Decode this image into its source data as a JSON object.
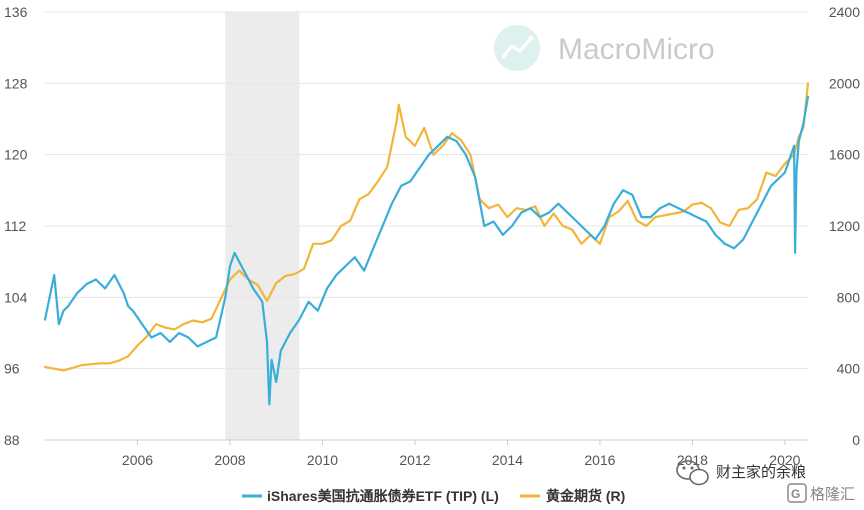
{
  "watermark": {
    "text": "MacroMicro",
    "logo": "macromicro-logo-icon"
  },
  "credits": {
    "wechat_account": "财主家的余粮",
    "publisher": "格隆汇",
    "wechat_icon": "wechat-icon",
    "publisher_icon": "gelonghui-logo-icon"
  },
  "colors": {
    "tip": "#3aaed8",
    "gold": "#f2b53a",
    "grid": "#e6e6e6",
    "shade": "#ececec"
  },
  "chart_data": {
    "type": "line",
    "x_range": [
      2004.0,
      2020.5
    ],
    "y_left": {
      "min": 88,
      "max": 136,
      "ticks": [
        "88",
        "96",
        "104",
        "112",
        "120",
        "128",
        "136"
      ]
    },
    "y_right": {
      "min": 0,
      "max": 2400,
      "ticks": [
        "0",
        "400",
        "800",
        "1200",
        "1600",
        "2000",
        "2400"
      ]
    },
    "x_ticks": [
      "2006",
      "2008",
      "2010",
      "2012",
      "2014",
      "2016",
      "2018",
      "2020"
    ],
    "grid": true,
    "legend_position": "bottom",
    "shaded_regions": [
      {
        "from": 2007.9,
        "to": 2009.5
      }
    ],
    "series": [
      {
        "name": "iShares美国抗通胀债券ETF (TIP) (L)",
        "axis": "left",
        "color": "#3aaed8",
        "x": [
          2004.0,
          2004.1,
          2004.2,
          2004.3,
          2004.4,
          2004.5,
          2004.7,
          2004.9,
          2005.1,
          2005.3,
          2005.5,
          2005.7,
          2005.8,
          2005.9,
          2006.1,
          2006.3,
          2006.5,
          2006.7,
          2006.9,
          2007.1,
          2007.3,
          2007.5,
          2007.7,
          2007.9,
          2008.0,
          2008.1,
          2008.2,
          2008.35,
          2008.5,
          2008.7,
          2008.8,
          2008.85,
          2008.9,
          2009.0,
          2009.1,
          2009.3,
          2009.5,
          2009.7,
          2009.9,
          2010.1,
          2010.3,
          2010.5,
          2010.7,
          2010.9,
          2011.1,
          2011.3,
          2011.5,
          2011.7,
          2011.9,
          2012.1,
          2012.3,
          2012.5,
          2012.7,
          2012.9,
          2013.1,
          2013.3,
          2013.5,
          2013.7,
          2013.9,
          2014.1,
          2014.3,
          2014.5,
          2014.7,
          2014.9,
          2015.1,
          2015.3,
          2015.5,
          2015.7,
          2015.9,
          2016.1,
          2016.3,
          2016.5,
          2016.7,
          2016.9,
          2017.1,
          2017.3,
          2017.5,
          2017.7,
          2017.9,
          2018.1,
          2018.3,
          2018.5,
          2018.7,
          2018.9,
          2019.1,
          2019.3,
          2019.5,
          2019.7,
          2019.9,
          2020.0,
          2020.1,
          2020.2,
          2020.22,
          2020.25,
          2020.3,
          2020.4,
          2020.5
        ],
        "values": [
          101.5,
          104.0,
          106.5,
          101.0,
          102.5,
          103.0,
          104.5,
          105.5,
          106.0,
          105.0,
          106.5,
          104.5,
          103.0,
          102.5,
          101.0,
          99.5,
          100.0,
          99.0,
          100.0,
          99.5,
          98.5,
          99.0,
          99.5,
          104.0,
          107.5,
          109.0,
          108.0,
          106.5,
          105.0,
          103.5,
          99.0,
          92.0,
          97.0,
          94.5,
          98.0,
          100.0,
          101.5,
          103.5,
          102.5,
          105.0,
          106.5,
          107.5,
          108.5,
          107.0,
          109.5,
          112.0,
          114.5,
          116.5,
          117.0,
          118.5,
          120.0,
          121.0,
          122.0,
          121.5,
          120.0,
          117.5,
          112.0,
          112.5,
          111.0,
          112.0,
          113.5,
          114.0,
          113.0,
          113.5,
          114.5,
          113.5,
          112.5,
          111.5,
          110.5,
          112.0,
          114.5,
          116.0,
          115.5,
          113.0,
          113.0,
          114.0,
          114.5,
          114.0,
          113.5,
          113.0,
          112.5,
          111.0,
          110.0,
          109.5,
          110.5,
          112.5,
          114.5,
          116.5,
          117.5,
          118.0,
          119.5,
          121.0,
          109.0,
          118.0,
          121.5,
          123.5,
          126.5
        ]
      },
      {
        "name": "黄金期货 (R)",
        "axis": "right",
        "color": "#f2b53a",
        "x": [
          2004.0,
          2004.2,
          2004.4,
          2004.6,
          2004.8,
          2005.0,
          2005.2,
          2005.4,
          2005.6,
          2005.8,
          2006.0,
          2006.2,
          2006.4,
          2006.6,
          2006.8,
          2007.0,
          2007.2,
          2007.4,
          2007.6,
          2007.8,
          2008.0,
          2008.2,
          2008.4,
          2008.6,
          2008.8,
          2009.0,
          2009.2,
          2009.4,
          2009.6,
          2009.8,
          2010.0,
          2010.2,
          2010.4,
          2010.6,
          2010.8,
          2011.0,
          2011.2,
          2011.4,
          2011.6,
          2011.65,
          2011.8,
          2012.0,
          2012.2,
          2012.4,
          2012.6,
          2012.8,
          2013.0,
          2013.2,
          2013.4,
          2013.6,
          2013.8,
          2014.0,
          2014.2,
          2014.4,
          2014.6,
          2014.8,
          2015.0,
          2015.2,
          2015.4,
          2015.6,
          2015.8,
          2016.0,
          2016.2,
          2016.4,
          2016.6,
          2016.8,
          2017.0,
          2017.2,
          2017.4,
          2017.6,
          2017.8,
          2018.0,
          2018.2,
          2018.4,
          2018.6,
          2018.8,
          2019.0,
          2019.2,
          2019.4,
          2019.6,
          2019.8,
          2020.0,
          2020.2,
          2020.3,
          2020.4,
          2020.5
        ],
        "values": [
          410,
          400,
          390,
          405,
          420,
          425,
          430,
          430,
          445,
          470,
          530,
          580,
          650,
          630,
          620,
          650,
          670,
          660,
          680,
          790,
          900,
          950,
          900,
          870,
          780,
          880,
          920,
          930,
          960,
          1100,
          1100,
          1120,
          1200,
          1230,
          1350,
          1380,
          1450,
          1530,
          1780,
          1880,
          1700,
          1650,
          1750,
          1600,
          1650,
          1720,
          1680,
          1600,
          1350,
          1300,
          1320,
          1250,
          1300,
          1290,
          1310,
          1200,
          1270,
          1200,
          1180,
          1100,
          1150,
          1100,
          1250,
          1280,
          1340,
          1230,
          1200,
          1250,
          1260,
          1270,
          1280,
          1320,
          1330,
          1300,
          1220,
          1200,
          1290,
          1300,
          1350,
          1500,
          1480,
          1550,
          1600,
          1700,
          1750,
          2000
        ]
      }
    ]
  }
}
